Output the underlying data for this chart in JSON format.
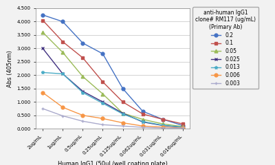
{
  "x_labels": [
    "2ug/mL",
    "1ug/mL",
    "0.5ug/mL",
    "0.25ug/mL",
    "0.125ug/mL",
    "0.062ug/mL",
    "0.031ug/mL",
    "0.016ug/mL"
  ],
  "series": [
    {
      "label": "0.2",
      "color": "#4472C4",
      "marker": "o",
      "values": [
        4.25,
        4.0,
        3.2,
        2.8,
        1.5,
        0.65,
        0.35,
        0.12
      ]
    },
    {
      "label": "0.1",
      "color": "#C0504D",
      "marker": "s",
      "values": [
        4.05,
        3.25,
        2.65,
        1.75,
        1.0,
        0.55,
        0.35,
        0.18
      ]
    },
    {
      "label": "0.05",
      "color": "#9BBB59",
      "marker": "^",
      "values": [
        3.6,
        2.85,
        1.95,
        1.3,
        0.58,
        0.35,
        0.18,
        0.08
      ]
    },
    {
      "label": "0.025",
      "color": "#403080",
      "marker": "x",
      "values": [
        3.0,
        2.05,
        1.4,
        1.0,
        0.58,
        0.25,
        0.12,
        0.05
      ]
    },
    {
      "label": "0.013",
      "color": "#4BACC6",
      "marker": "*",
      "values": [
        2.1,
        2.05,
        1.35,
        0.95,
        0.55,
        0.27,
        0.13,
        0.06
      ]
    },
    {
      "label": "0.006",
      "color": "#F79646",
      "marker": "o",
      "values": [
        1.35,
        0.8,
        0.5,
        0.38,
        0.22,
        0.1,
        0.06,
        0.03
      ]
    },
    {
      "label": "0.003",
      "color": "#AAAACC",
      "marker": "+",
      "values": [
        0.75,
        0.48,
        0.28,
        0.15,
        0.1,
        0.05,
        0.03,
        0.02
      ]
    }
  ],
  "ylabel": "Abs (405nm)",
  "xlabel": "Human IgG1 (50uL/well coating plate)",
  "ylim": [
    0.0,
    4.5
  ],
  "yticks": [
    0.0,
    0.5,
    1.0,
    1.5,
    2.0,
    2.5,
    3.0,
    3.5,
    4.0,
    4.5
  ],
  "legend_title": "anti-human IgG1\nclone# RM117 (ug/mL)\n(Primary Ab)",
  "background_color": "#F2F2F2",
  "plot_bg_color": "#FFFFFF",
  "grid_color": "#CCCCCC"
}
